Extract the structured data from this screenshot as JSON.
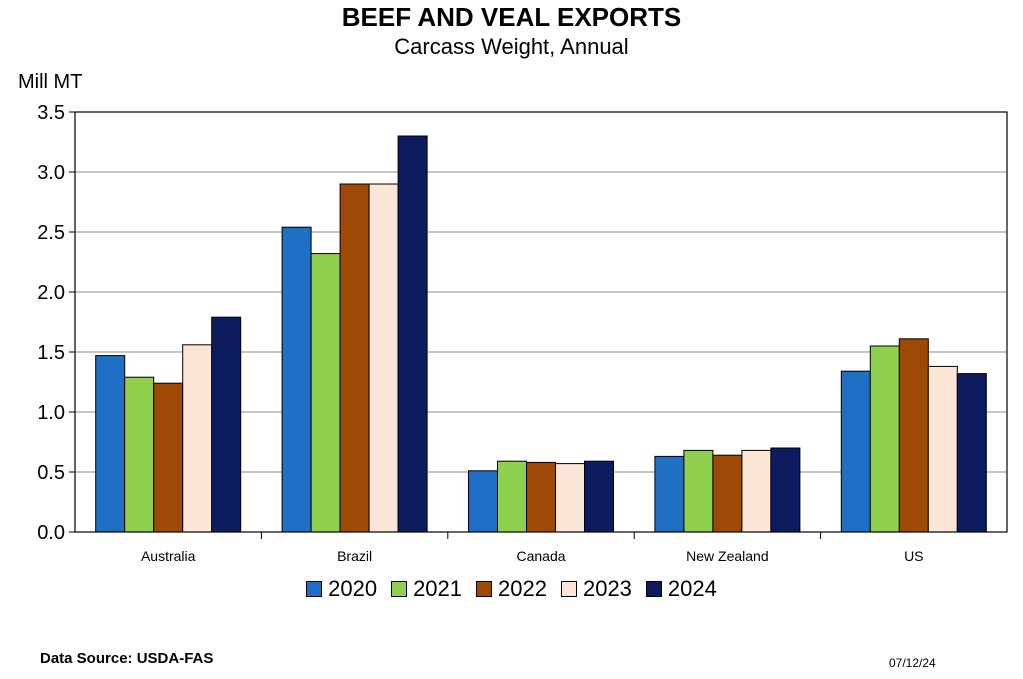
{
  "chart_data": {
    "type": "bar",
    "title": "BEEF AND VEAL EXPORTS",
    "subtitle": "Carcass Weight, Annual",
    "ylabel": "Mill MT",
    "xlabel": "",
    "ylim": [
      0,
      3.5
    ],
    "yticks": [
      "0.0",
      "0.5",
      "1.0",
      "1.5",
      "2.0",
      "2.5",
      "3.0",
      "3.5"
    ],
    "grid": true,
    "legend_position": "bottom",
    "categories": [
      "Australia",
      "Brazil",
      "Canada",
      "New Zealand",
      "US"
    ],
    "series": [
      {
        "name": "2020",
        "color": "#1f6fc5",
        "values": [
          1.47,
          2.54,
          0.51,
          0.63,
          1.34
        ]
      },
      {
        "name": "2021",
        "color": "#8fd14f",
        "values": [
          1.29,
          2.32,
          0.59,
          0.68,
          1.55
        ]
      },
      {
        "name": "2022",
        "color": "#9e4a06",
        "values": [
          1.24,
          2.9,
          0.58,
          0.64,
          1.61
        ]
      },
      {
        "name": "2023",
        "color": "#fbe5d6",
        "values": [
          1.56,
          2.9,
          0.57,
          0.68,
          1.38
        ]
      },
      {
        "name": "2024",
        "color": "#0d1c5e",
        "values": [
          1.79,
          3.3,
          0.59,
          0.7,
          1.32
        ]
      }
    ]
  },
  "footer": {
    "source": "Data Source:  USDA-FAS",
    "date": "07/12/24"
  }
}
